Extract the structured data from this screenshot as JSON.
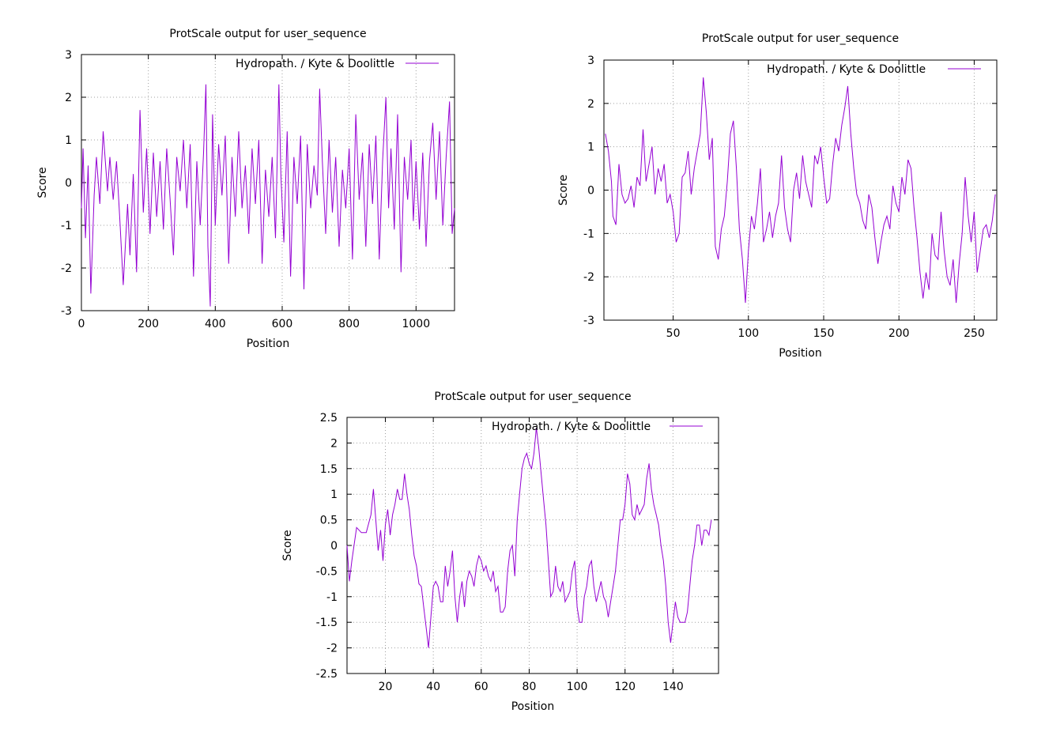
{
  "chart_data": [
    {
      "type": "line",
      "title": "ProtScale output for user_sequence",
      "xlabel": "Position",
      "ylabel": "Score",
      "xlim": [
        0,
        1115
      ],
      "ylim": [
        -3,
        3
      ],
      "xticks": [
        0,
        200,
        400,
        600,
        800,
        1000
      ],
      "yticks": [
        -3,
        -2,
        -1,
        0,
        1,
        2,
        3
      ],
      "grid": true,
      "legend_position": "top-right",
      "color": "#9400d3",
      "series": [
        {
          "name": "Hydropath. / Kyte & Doolittle",
          "x": [
            0,
            5,
            12,
            20,
            28,
            38,
            45,
            55,
            65,
            78,
            85,
            95,
            105,
            115,
            125,
            138,
            145,
            155,
            165,
            175,
            185,
            195,
            205,
            215,
            225,
            235,
            245,
            255,
            265,
            275,
            285,
            295,
            305,
            315,
            325,
            335,
            345,
            355,
            365,
            372,
            378,
            385,
            392,
            400,
            410,
            420,
            430,
            440,
            450,
            460,
            470,
            480,
            490,
            500,
            510,
            520,
            530,
            540,
            550,
            560,
            570,
            580,
            590,
            596,
            605,
            615,
            625,
            635,
            645,
            655,
            665,
            675,
            685,
            695,
            705,
            712,
            720,
            730,
            740,
            750,
            760,
            770,
            780,
            790,
            800,
            810,
            820,
            830,
            840,
            850,
            860,
            870,
            880,
            890,
            900,
            910,
            918,
            925,
            935,
            945,
            955,
            965,
            975,
            985,
            992,
            1000,
            1010,
            1020,
            1030,
            1040,
            1050,
            1060,
            1070,
            1080,
            1090,
            1100,
            1108,
            1115
          ],
          "y": [
            -0.6,
            0.8,
            -1.3,
            0.4,
            -2.6,
            -0.3,
            0.6,
            -0.5,
            1.2,
            -0.2,
            0.6,
            -0.4,
            0.5,
            -0.9,
            -2.4,
            -0.5,
            -1.7,
            0.2,
            -2.1,
            1.7,
            -0.7,
            0.8,
            -1.2,
            0.7,
            -0.8,
            0.5,
            -1.1,
            0.8,
            -0.4,
            -1.7,
            0.6,
            -0.2,
            1.0,
            -0.6,
            0.9,
            -2.2,
            0.5,
            -1.0,
            0.7,
            2.3,
            -1.5,
            -2.9,
            1.6,
            -1.0,
            0.9,
            -0.3,
            1.1,
            -1.9,
            0.6,
            -0.8,
            1.2,
            -0.6,
            0.4,
            -1.2,
            0.8,
            -0.5,
            1.0,
            -1.9,
            0.3,
            -0.8,
            0.6,
            -1.3,
            2.3,
            0.2,
            -1.4,
            1.2,
            -2.2,
            0.6,
            -0.5,
            1.1,
            -2.5,
            0.9,
            -0.6,
            0.4,
            -0.3,
            2.2,
            0.5,
            -1.2,
            1.0,
            -0.7,
            0.6,
            -1.5,
            0.3,
            -0.6,
            0.8,
            -1.8,
            1.6,
            -0.4,
            0.7,
            -1.5,
            0.9,
            -0.5,
            1.1,
            -1.8,
            0.5,
            2.0,
            -0.6,
            0.8,
            -1.1,
            1.6,
            -2.1,
            0.6,
            -0.4,
            1.0,
            -0.9,
            0.5,
            -1.1,
            0.7,
            -1.5,
            0.5,
            1.4,
            -0.4,
            1.2,
            -1.0,
            0.6,
            1.9,
            -1.2,
            -0.6
          ]
        }
      ]
    },
    {
      "type": "line",
      "title": "ProtScale output for user_sequence",
      "xlabel": "Position",
      "ylabel": "Score",
      "xlim": [
        4,
        265
      ],
      "ylim": [
        -3,
        3
      ],
      "xticks": [
        50,
        100,
        150,
        200,
        250
      ],
      "yticks": [
        -3,
        -2,
        -1,
        0,
        1,
        2,
        3
      ],
      "grid": true,
      "legend_position": "top-right",
      "color": "#9400d3",
      "series": [
        {
          "name": "Hydropath. / Kyte & Doolittle",
          "x": [
            5,
            7,
            9,
            10,
            12,
            14,
            16,
            18,
            20,
            22,
            24,
            26,
            28,
            30,
            32,
            34,
            36,
            38,
            40,
            42,
            44,
            46,
            48,
            50,
            52,
            54,
            56,
            58,
            60,
            62,
            64,
            66,
            68,
            70,
            72,
            74,
            76,
            78,
            80,
            82,
            84,
            86,
            88,
            90,
            92,
            94,
            96,
            98,
            100,
            102,
            104,
            106,
            108,
            110,
            112,
            114,
            116,
            118,
            120,
            122,
            124,
            126,
            128,
            130,
            132,
            134,
            136,
            138,
            140,
            142,
            144,
            146,
            148,
            150,
            152,
            154,
            156,
            158,
            160,
            162,
            164,
            166,
            168,
            170,
            172,
            174,
            176,
            178,
            180,
            182,
            184,
            186,
            188,
            190,
            192,
            194,
            196,
            198,
            200,
            202,
            204,
            206,
            208,
            210,
            212,
            214,
            216,
            218,
            220,
            222,
            224,
            226,
            228,
            230,
            232,
            234,
            236,
            238,
            240,
            242,
            244,
            246,
            248,
            250,
            252,
            254,
            256,
            258,
            260,
            262,
            264
          ],
          "y": [
            1.3,
            0.9,
            0.2,
            -0.6,
            -0.8,
            0.6,
            -0.1,
            -0.3,
            -0.2,
            0.1,
            -0.4,
            0.3,
            0.1,
            1.4,
            0.2,
            0.6,
            1.0,
            -0.1,
            0.5,
            0.2,
            0.6,
            -0.3,
            -0.1,
            -0.5,
            -1.2,
            -1.0,
            0.3,
            0.4,
            0.9,
            -0.1,
            0.5,
            0.9,
            1.3,
            2.6,
            1.8,
            0.7,
            1.2,
            -1.3,
            -1.6,
            -0.9,
            -0.6,
            0.2,
            1.3,
            1.6,
            0.5,
            -0.9,
            -1.6,
            -2.6,
            -1.4,
            -0.6,
            -0.9,
            -0.3,
            0.5,
            -1.2,
            -0.9,
            -0.5,
            -1.1,
            -0.6,
            -0.3,
            0.8,
            -0.4,
            -0.9,
            -1.2,
            0.0,
            0.4,
            -0.2,
            0.8,
            0.2,
            -0.1,
            -0.4,
            0.8,
            0.6,
            1.0,
            0.3,
            -0.3,
            -0.2,
            0.6,
            1.2,
            0.9,
            1.5,
            1.9,
            2.4,
            1.3,
            0.5,
            -0.1,
            -0.3,
            -0.7,
            -0.9,
            -0.1,
            -0.4,
            -1.1,
            -1.7,
            -1.2,
            -0.8,
            -0.6,
            -0.9,
            0.1,
            -0.3,
            -0.5,
            0.3,
            -0.1,
            0.7,
            0.5,
            -0.4,
            -1.1,
            -1.9,
            -2.5,
            -1.9,
            -2.3,
            -1.0,
            -1.5,
            -1.6,
            -0.5,
            -1.4,
            -2.0,
            -2.2,
            -1.6,
            -2.6,
            -1.7,
            -1.0,
            0.3,
            -0.6,
            -1.2,
            -0.5,
            -1.9,
            -1.4,
            -0.9,
            -0.8,
            -1.1,
            -0.7,
            -0.1
          ]
        }
      ]
    },
    {
      "type": "line",
      "title": "ProtScale output for user_sequence",
      "xlabel": "Position",
      "ylabel": "Score",
      "xlim": [
        4,
        159
      ],
      "ylim": [
        -2.5,
        2.5
      ],
      "xticks": [
        20,
        40,
        60,
        80,
        100,
        120,
        140
      ],
      "yticks": [
        -2.5,
        -2,
        -1.5,
        -1,
        -0.5,
        0,
        0.5,
        1,
        1.5,
        2,
        2.5
      ],
      "grid": true,
      "legend_position": "top-right",
      "color": "#9400d3",
      "series": [
        {
          "name": "Hydropath. / Kyte & Doolittle",
          "x": [
            4,
            5,
            6,
            8,
            10,
            12,
            14,
            15,
            16,
            17,
            18,
            19,
            20,
            21,
            22,
            23,
            24,
            25,
            26,
            27,
            28,
            29,
            30,
            31,
            32,
            33,
            34,
            35,
            36,
            37,
            38,
            39,
            40,
            41,
            42,
            43,
            44,
            45,
            46,
            47,
            48,
            49,
            50,
            51,
            52,
            53,
            54,
            55,
            56,
            57,
            58,
            59,
            60,
            61,
            62,
            63,
            64,
            65,
            66,
            67,
            68,
            69,
            70,
            71,
            72,
            73,
            74,
            75,
            76,
            77,
            78,
            79,
            80,
            81,
            82,
            83,
            84,
            85,
            86,
            87,
            88,
            89,
            90,
            91,
            92,
            93,
            94,
            95,
            96,
            97,
            98,
            99,
            100,
            101,
            102,
            103,
            104,
            105,
            106,
            107,
            108,
            109,
            110,
            111,
            112,
            113,
            114,
            115,
            116,
            117,
            118,
            119,
            120,
            121,
            122,
            123,
            124,
            125,
            126,
            127,
            128,
            129,
            130,
            131,
            132,
            133,
            134,
            135,
            136,
            137,
            138,
            139,
            140,
            141,
            142,
            143,
            144,
            145,
            146,
            147,
            148,
            149,
            150,
            151,
            152,
            153,
            154,
            155,
            156
          ],
          "y": [
            0.0,
            -0.7,
            -0.3,
            0.35,
            0.25,
            0.25,
            0.6,
            1.1,
            0.5,
            -0.1,
            0.3,
            -0.3,
            0.4,
            0.7,
            0.2,
            0.6,
            0.8,
            1.1,
            0.9,
            0.9,
            1.4,
            1.0,
            0.7,
            0.2,
            -0.2,
            -0.4,
            -0.75,
            -0.8,
            -1.2,
            -1.6,
            -2.0,
            -1.4,
            -0.8,
            -0.7,
            -0.8,
            -1.1,
            -1.1,
            -0.4,
            -0.8,
            -0.5,
            -0.1,
            -1.0,
            -1.5,
            -1.0,
            -0.7,
            -1.2,
            -0.7,
            -0.5,
            -0.6,
            -0.8,
            -0.4,
            -0.2,
            -0.3,
            -0.5,
            -0.4,
            -0.6,
            -0.7,
            -0.5,
            -0.9,
            -0.8,
            -1.3,
            -1.3,
            -1.2,
            -0.5,
            -0.1,
            0.0,
            -0.6,
            0.5,
            1.0,
            1.5,
            1.7,
            1.8,
            1.6,
            1.5,
            1.8,
            2.3,
            1.9,
            1.4,
            0.9,
            0.4,
            -0.3,
            -1.0,
            -0.9,
            -0.4,
            -0.8,
            -0.9,
            -0.7,
            -1.1,
            -1.0,
            -0.9,
            -0.5,
            -0.3,
            -1.2,
            -1.5,
            -1.5,
            -1.0,
            -0.8,
            -0.4,
            -0.3,
            -0.8,
            -1.1,
            -0.9,
            -0.7,
            -1.0,
            -1.1,
            -1.4,
            -1.1,
            -0.8,
            -0.5,
            0.0,
            0.5,
            0.5,
            0.8,
            1.4,
            1.2,
            0.6,
            0.5,
            0.8,
            0.6,
            0.7,
            0.8,
            1.3,
            1.6,
            1.1,
            0.8,
            0.6,
            0.4,
            0.0,
            -0.3,
            -0.8,
            -1.5,
            -1.9,
            -1.5,
            -1.1,
            -1.4,
            -1.5,
            -1.5,
            -1.5,
            -1.3,
            -0.8,
            -0.3,
            0.0,
            0.4,
            0.4,
            0.0,
            0.3,
            0.3,
            0.2,
            0.5
          ]
        }
      ]
    }
  ]
}
